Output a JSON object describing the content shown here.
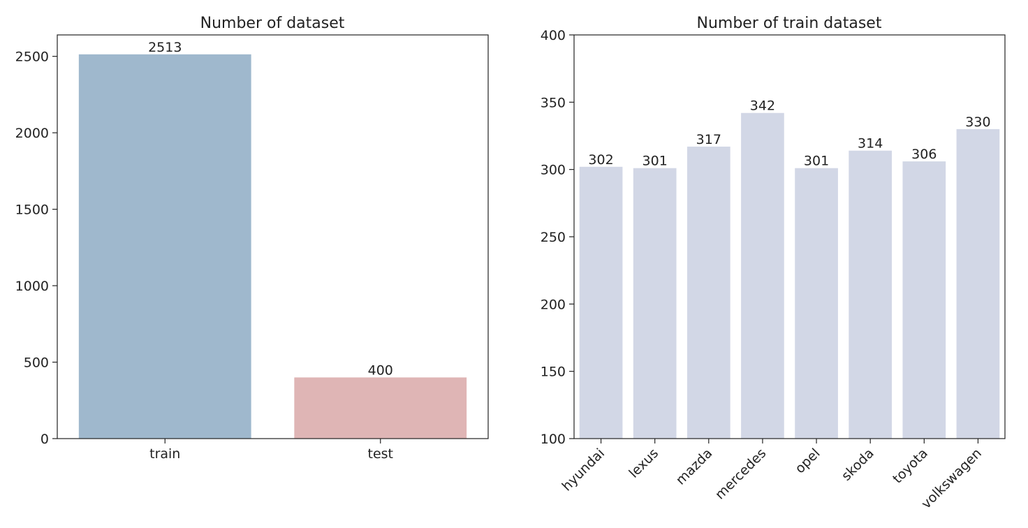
{
  "chart_data": [
    {
      "type": "bar",
      "title": "Number of dataset",
      "xlabel": "",
      "ylabel": "",
      "categories": [
        "train",
        "test"
      ],
      "values": [
        2513,
        400
      ],
      "data_labels": [
        "2513",
        "400"
      ],
      "colors": [
        "#9fb8cd",
        "#dfb5b5"
      ],
      "ylim": [
        0,
        2640
      ],
      "yticks": [
        0,
        500,
        1000,
        1500,
        2000,
        2500
      ],
      "grid": false,
      "legend": "none"
    },
    {
      "type": "bar",
      "title": "Number of train dataset",
      "xlabel": "",
      "ylabel": "",
      "categories": [
        "hyundai",
        "lexus",
        "mazda",
        "mercedes",
        "opel",
        "skoda",
        "toyota",
        "volkswagen"
      ],
      "values": [
        302,
        301,
        317,
        342,
        301,
        314,
        306,
        330
      ],
      "data_labels": [
        "302",
        "301",
        "317",
        "342",
        "301",
        "314",
        "306",
        "330"
      ],
      "colors": [
        "#d2d7e6"
      ],
      "ylim": [
        100,
        400
      ],
      "yticks": [
        100,
        150,
        200,
        250,
        300,
        350,
        400
      ],
      "xtick_rotation_deg": 45,
      "grid": false,
      "legend": "none"
    }
  ]
}
